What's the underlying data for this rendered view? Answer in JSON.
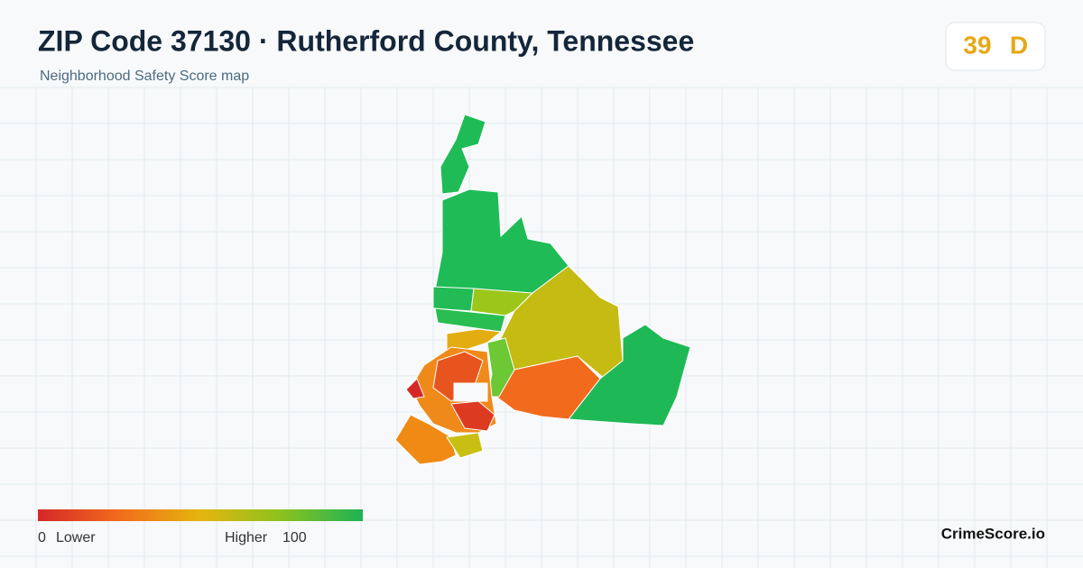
{
  "header": {
    "title": "ZIP Code 37130 · Rutherford County, Tennessee",
    "subtitle": "Neighborhood Safety Score map"
  },
  "score": {
    "value": 39,
    "grade": "D"
  },
  "legend": {
    "min": 0,
    "min_label": "Lower",
    "max_label": "Higher",
    "max": 100
  },
  "brand": "CrimeScore.io"
}
